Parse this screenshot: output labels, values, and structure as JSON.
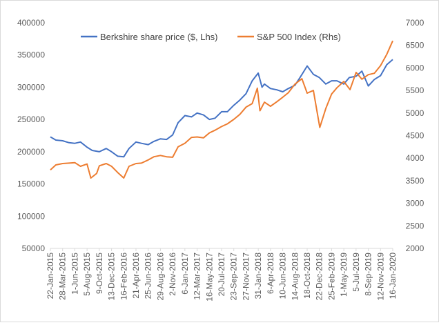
{
  "chart_data": {
    "type": "line",
    "title": "",
    "xlabel": "",
    "ylabel": "",
    "legend_position": "top-center",
    "grid": false,
    "x_ticks": [
      "22-Jan-2015",
      "28-Mar-2015",
      "1-Jun-2015",
      "5-Aug-2015",
      "9-Oct-2015",
      "13-Dec-2015",
      "16-Feb-2016",
      "21-Apr-2016",
      "25-Jun-2016",
      "29-Aug-2016",
      "2-Nov-2016",
      "6-Jan-2017",
      "12-Mar-2017",
      "16-May-2017",
      "20-Jul-2017",
      "23-Sep-2017",
      "27-Nov-2017",
      "31-Jan-2018",
      "6-Apr-2018",
      "10-Jun-2018",
      "14-Aug-2018",
      "18-Oct-2018",
      "22-Dec-2018",
      "25-Feb-2019",
      "1-May-2019",
      "5-Jul-2019",
      "8-Sep-2019",
      "12-Nov-2019",
      "16-Jan-2020"
    ],
    "y_left": {
      "min": 50000,
      "max": 400000,
      "ticks": [
        "50000",
        "100000",
        "150000",
        "200000",
        "250000",
        "300000",
        "350000",
        "400000"
      ]
    },
    "y_right": {
      "min": 2000,
      "max": 7000,
      "ticks": [
        "2000",
        "2500",
        "3000",
        "3500",
        "4000",
        "4500",
        "5000",
        "5500",
        "6000",
        "6500",
        "7000"
      ]
    },
    "series": [
      {
        "name": "Berkshire share price ($, Lhs)",
        "axis": "left",
        "color": "#4472c4",
        "x": [
          "2015-01-22",
          "2015-02-20",
          "2015-03-28",
          "2015-05-01",
          "2015-06-01",
          "2015-07-01",
          "2015-08-05",
          "2015-09-01",
          "2015-10-09",
          "2015-11-15",
          "2015-12-13",
          "2016-01-15",
          "2016-02-16",
          "2016-03-15",
          "2016-04-21",
          "2016-05-20",
          "2016-06-25",
          "2016-07-25",
          "2016-08-29",
          "2016-10-01",
          "2016-11-02",
          "2016-12-01",
          "2017-01-06",
          "2017-02-10",
          "2017-03-12",
          "2017-04-15",
          "2017-05-16",
          "2017-06-15",
          "2017-07-20",
          "2017-08-20",
          "2017-09-23",
          "2017-10-25",
          "2017-11-27",
          "2017-12-30",
          "2018-01-31",
          "2018-02-20",
          "2018-03-05",
          "2018-04-06",
          "2018-05-10",
          "2018-06-10",
          "2018-07-10",
          "2018-08-14",
          "2018-09-10",
          "2018-10-01",
          "2018-10-18",
          "2018-11-20",
          "2018-12-22",
          "2019-01-25",
          "2019-02-25",
          "2019-03-25",
          "2019-05-01",
          "2019-05-30",
          "2019-07-05",
          "2019-08-05",
          "2019-09-08",
          "2019-10-10",
          "2019-11-12",
          "2019-12-15",
          "2020-01-16"
        ],
        "y": [
          223000,
          218000,
          217000,
          214000,
          213000,
          215000,
          207000,
          202000,
          200000,
          205000,
          200000,
          193000,
          192000,
          205000,
          215000,
          213000,
          211000,
          216000,
          220000,
          219000,
          226000,
          245000,
          256000,
          254000,
          260000,
          257000,
          250000,
          252000,
          262000,
          262000,
          272000,
          280000,
          290000,
          310000,
          322000,
          300000,
          305000,
          298000,
          296000,
          293000,
          298000,
          303000,
          315000,
          325000,
          333000,
          320000,
          315000,
          305000,
          310000,
          310000,
          305000,
          315000,
          317000,
          325000,
          302000,
          312000,
          318000,
          335000,
          343000
        ]
      },
      {
        "name": "S&P 500 Index  (Rhs)",
        "axis": "right",
        "color": "#ed7d31",
        "x": [
          "2015-01-22",
          "2015-02-20",
          "2015-03-28",
          "2015-05-01",
          "2015-06-01",
          "2015-07-01",
          "2015-08-05",
          "2015-08-25",
          "2015-09-25",
          "2015-10-09",
          "2015-11-15",
          "2015-12-13",
          "2016-01-15",
          "2016-02-16",
          "2016-03-15",
          "2016-04-21",
          "2016-05-20",
          "2016-06-25",
          "2016-07-25",
          "2016-08-29",
          "2016-10-01",
          "2016-11-02",
          "2016-12-01",
          "2017-01-06",
          "2017-02-10",
          "2017-03-12",
          "2017-04-15",
          "2017-05-16",
          "2017-06-15",
          "2017-07-20",
          "2017-08-20",
          "2017-09-23",
          "2017-10-25",
          "2017-11-27",
          "2017-12-30",
          "2018-01-26",
          "2018-02-09",
          "2018-03-05",
          "2018-04-06",
          "2018-05-10",
          "2018-06-10",
          "2018-07-10",
          "2018-08-14",
          "2018-09-20",
          "2018-10-18",
          "2018-11-20",
          "2018-12-24",
          "2019-01-25",
          "2019-02-25",
          "2019-03-25",
          "2019-05-01",
          "2019-06-03",
          "2019-07-05",
          "2019-08-05",
          "2019-09-08",
          "2019-10-10",
          "2019-11-12",
          "2019-12-15",
          "2020-01-16"
        ],
        "y": [
          3740,
          3850,
          3880,
          3890,
          3900,
          3820,
          3870,
          3560,
          3660,
          3830,
          3880,
          3820,
          3680,
          3560,
          3820,
          3880,
          3890,
          3960,
          4030,
          4060,
          4030,
          4020,
          4250,
          4330,
          4460,
          4470,
          4450,
          4560,
          4620,
          4700,
          4760,
          4860,
          4970,
          5130,
          5210,
          5550,
          5050,
          5240,
          5150,
          5250,
          5350,
          5450,
          5640,
          5760,
          5440,
          5500,
          4680,
          5100,
          5420,
          5560,
          5700,
          5520,
          5900,
          5750,
          5850,
          5880,
          6050,
          6300,
          6600
        ]
      }
    ]
  }
}
